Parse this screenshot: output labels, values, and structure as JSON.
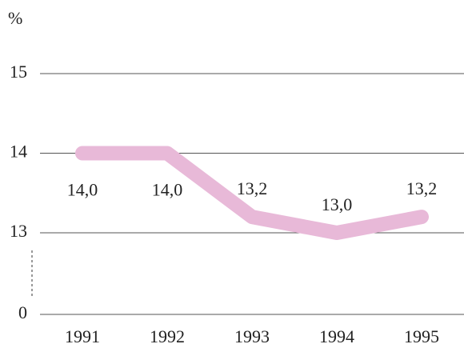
{
  "chart_data": {
    "type": "line",
    "y_label": "%",
    "categories": [
      "1991",
      "1992",
      "1993",
      "1994",
      "1995"
    ],
    "values": [
      14,
      14,
      13.2,
      13,
      13.2
    ],
    "value_labels": [
      "14,0",
      "14,0",
      "13,2",
      "13,0",
      "13,2"
    ],
    "color": "#e8b9d8",
    "ylim": [
      0,
      15
    ],
    "yticks": [
      0,
      13,
      14,
      15
    ],
    "axis_break": true,
    "grid": true
  }
}
